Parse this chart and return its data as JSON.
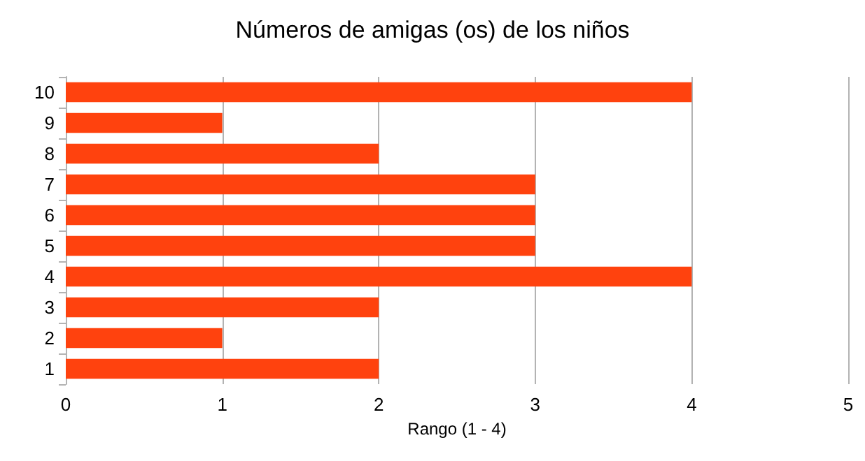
{
  "chart_data": {
    "type": "bar",
    "orientation": "horizontal",
    "title": "Números de amigas (os) de los niños",
    "xlabel": "Rango (1 - 4)",
    "categories": [
      "10",
      "9",
      "8",
      "7",
      "6",
      "5",
      "4",
      "3",
      "2",
      "1"
    ],
    "values": [
      4,
      1,
      2,
      3,
      3,
      3,
      4,
      2,
      1,
      2
    ],
    "color": "#ff420e",
    "xlim": [
      0,
      5
    ],
    "xticks": [
      0,
      1,
      2,
      3,
      4,
      5
    ],
    "grid": "x"
  }
}
